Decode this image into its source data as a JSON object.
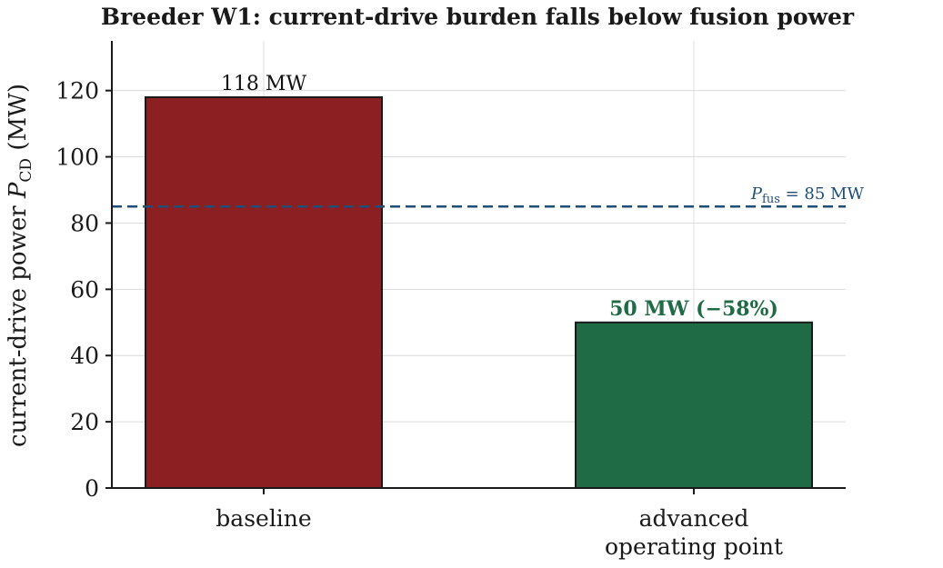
{
  "chart_data": {
    "type": "bar",
    "title": "Breeder W1: current-drive burden falls below fusion power",
    "xlabel": "",
    "ylabel": "current-drive power P_CD (MW)",
    "ylabel_parts": {
      "pre": "current-drive power ",
      "sym": "P",
      "sub": "CD",
      "post": " (MW)"
    },
    "categories": [
      "baseline",
      "advanced operating point"
    ],
    "category_lines": [
      [
        "baseline"
      ],
      [
        "advanced",
        "operating point"
      ]
    ],
    "values": [
      118,
      50
    ],
    "bar_colors": [
      "#8b1f22",
      "#1e6b45"
    ],
    "data_labels": [
      {
        "text": "118 MW",
        "color": "#111111",
        "bold": false
      },
      {
        "text": "50 MW (−58%)",
        "color": "#1e6b45",
        "bold": true
      }
    ],
    "reference_line": {
      "value": 85,
      "sym": "P",
      "sub": "fus",
      "text": " = 85 MW",
      "color": "#1f4e79",
      "style": "dashed"
    },
    "ylim": [
      0,
      135
    ],
    "yticks": [
      0,
      20,
      40,
      60,
      80,
      100,
      120
    ],
    "grid": true
  }
}
